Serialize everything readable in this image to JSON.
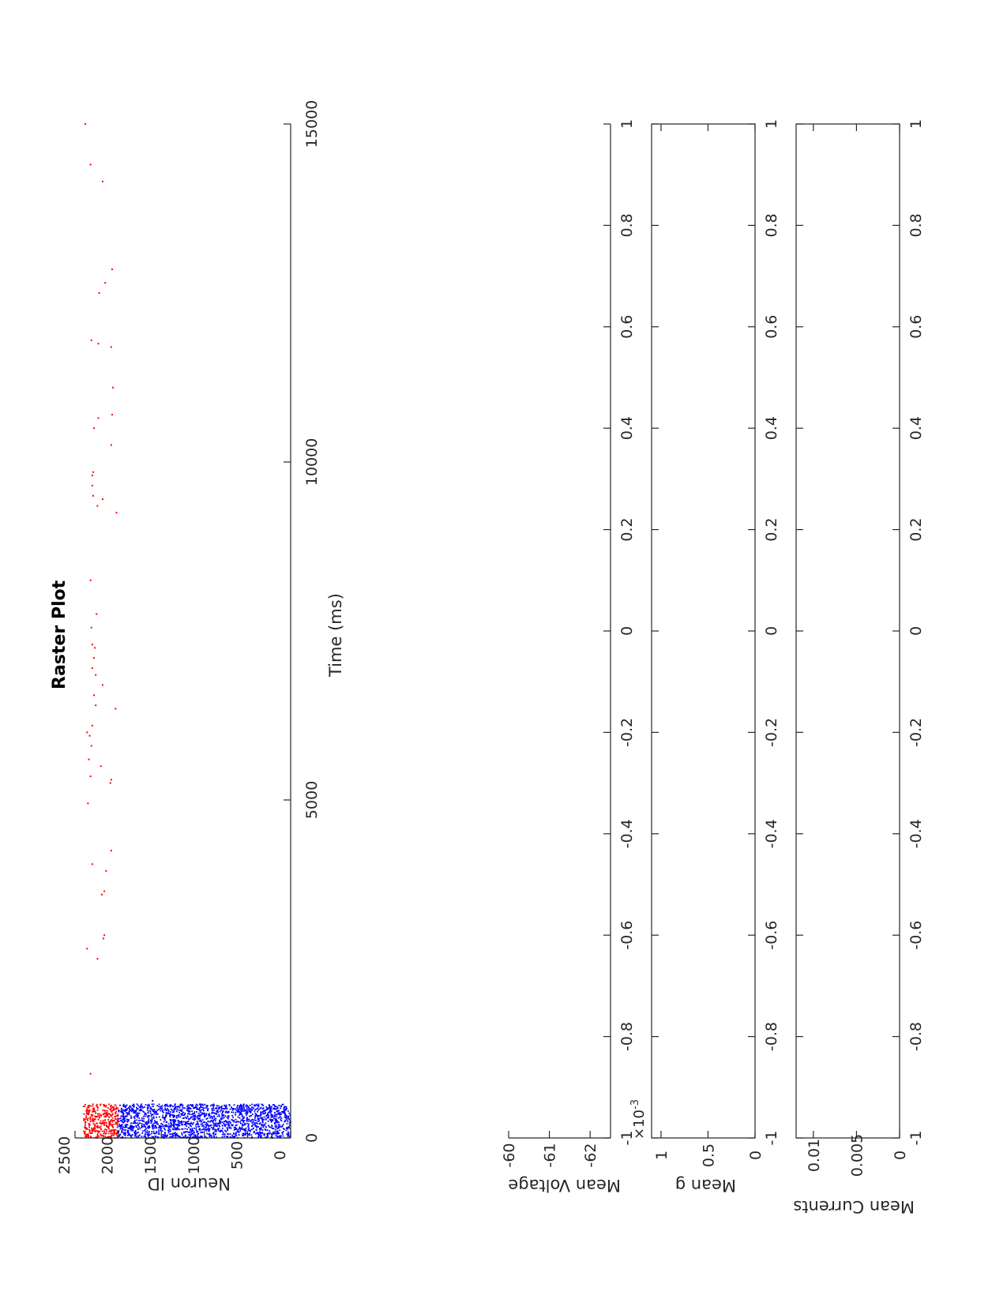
{
  "chart_data": [
    {
      "type": "scatter",
      "title": "Raster Plot",
      "xlabel": "Time (ms)",
      "ylabel": "Neuron ID",
      "xlim": [
        0,
        15000
      ],
      "ylim": [
        0,
        2500
      ],
      "x_ticks": [
        "0",
        "5000",
        "10000",
        "15000"
      ],
      "y_ticks": [
        "0",
        "500",
        "1000",
        "1500",
        "2000",
        "2500"
      ],
      "grid": false,
      "series": [
        {
          "color": "#ff0000",
          "description_of_density": "dense spiking of neurons 2000-2400 during 0-500 ms, sparse afterwards",
          "dense_block": {
            "x_range": [
              0,
              500
            ],
            "id_range": [
              2000,
              2400
            ]
          },
          "points": [
            [
              350,
              2170
            ],
            [
              950,
              2320
            ],
            [
              2650,
              2240
            ],
            [
              2800,
              2360
            ],
            [
              2950,
              2170
            ],
            [
              3000,
              2160
            ],
            [
              3600,
              2190
            ],
            [
              3650,
              2160
            ],
            [
              3950,
              2140
            ],
            [
              4050,
              2300
            ],
            [
              4250,
              2080
            ],
            [
              4950,
              2350
            ],
            [
              5250,
              2090
            ],
            [
              5300,
              2080
            ],
            [
              5350,
              2320
            ],
            [
              5500,
              2200
            ],
            [
              5600,
              2340
            ],
            [
              5800,
              2310
            ],
            [
              5950,
              2330
            ],
            [
              6000,
              2360
            ],
            [
              6100,
              2300
            ],
            [
              6350,
              2030
            ],
            [
              6400,
              2260
            ],
            [
              6550,
              2280
            ],
            [
              6700,
              2180
            ],
            [
              6850,
              2260
            ],
            [
              6950,
              2300
            ],
            [
              7100,
              2280
            ],
            [
              7250,
              2270
            ],
            [
              7300,
              2300
            ],
            [
              7550,
              2310
            ],
            [
              7750,
              2250
            ],
            [
              8250,
              2320
            ],
            [
              9250,
              2020
            ],
            [
              9350,
              2240
            ],
            [
              9450,
              2180
            ],
            [
              9500,
              2290
            ],
            [
              9650,
              2300
            ],
            [
              9800,
              2300
            ],
            [
              9850,
              2290
            ],
            [
              10250,
              2080
            ],
            [
              10500,
              2280
            ],
            [
              10650,
              2230
            ],
            [
              10700,
              2070
            ],
            [
              11100,
              2060
            ],
            [
              11700,
              2080
            ],
            [
              11750,
              2230
            ],
            [
              11800,
              2310
            ],
            [
              12500,
              2220
            ],
            [
              12650,
              2150
            ],
            [
              12850,
              2070
            ],
            [
              14150,
              2180
            ],
            [
              14400,
              2320
            ],
            [
              15000,
              2380
            ]
          ]
        },
        {
          "color": "#0000ff",
          "description_of_density": "dense spiking of neurons 0-2000 during 0-500 ms",
          "dense_block": {
            "x_range": [
              0,
              500
            ],
            "id_range": [
              0,
              2000
            ]
          },
          "points": [
            [
              550,
              1600
            ]
          ]
        }
      ]
    },
    {
      "type": "line",
      "ylabel": "Mean Voltage",
      "xlim": [
        -1,
        1
      ],
      "ylim": [
        -62.5,
        -60
      ],
      "x_ticks": [
        "-1",
        "-0.8",
        "-0.6",
        "-0.4",
        "-0.2",
        "0",
        "0.2",
        "0.4",
        "0.6",
        "0.8",
        "1"
      ],
      "y_ticks": [
        "-60",
        "-61",
        "-62"
      ],
      "series": []
    },
    {
      "type": "line",
      "ylabel": "Mean g",
      "exponent_label": "×10",
      "exponent_power": "-3",
      "xlim": [
        -1,
        1
      ],
      "ylim": [
        0,
        1.1
      ],
      "x_ticks": [
        "-1",
        "-0.8",
        "-0.6",
        "-0.4",
        "-0.2",
        "0",
        "0.2",
        "0.4",
        "0.6",
        "0.8",
        "1"
      ],
      "y_ticks": [
        "1",
        "0.5",
        "0"
      ],
      "series": []
    },
    {
      "type": "line",
      "ylabel": "Mean Currents",
      "xlim": [
        -1,
        1
      ],
      "ylim": [
        0,
        0.012
      ],
      "x_ticks": [
        "-1",
        "-0.8",
        "-0.6",
        "-0.4",
        "-0.2",
        "0",
        "0.2",
        "0.4",
        "0.6",
        "0.8",
        "1"
      ],
      "y_ticks": [
        "0.01",
        "0.005",
        "0"
      ],
      "series": []
    }
  ]
}
